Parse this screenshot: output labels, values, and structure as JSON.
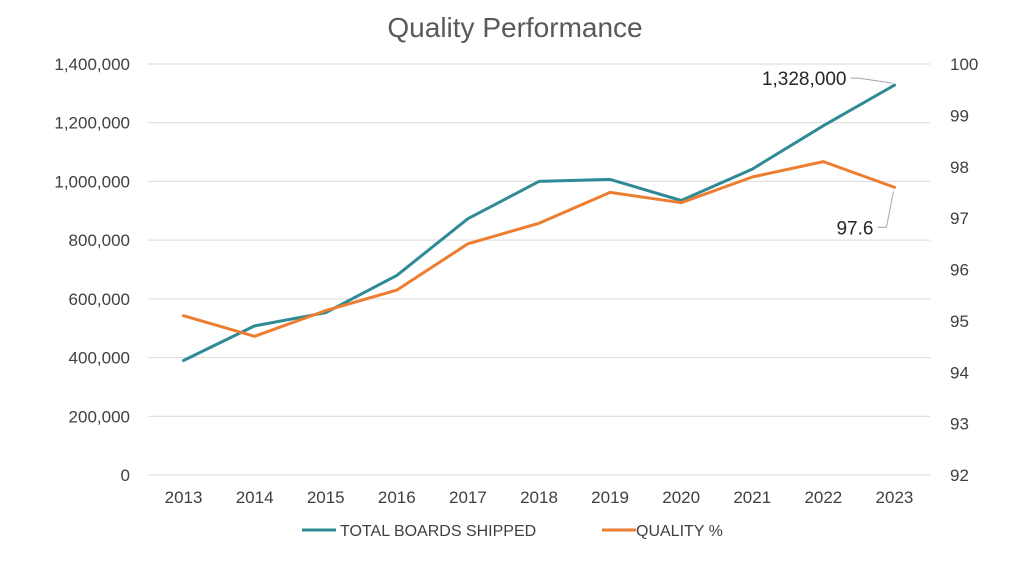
{
  "chart_data": {
    "type": "line",
    "title": "Quality Performance",
    "categories": [
      "2013",
      "2014",
      "2015",
      "2016",
      "2017",
      "2018",
      "2019",
      "2020",
      "2021",
      "2022",
      "2023"
    ],
    "grid": true,
    "legend_position": "bottom",
    "y_left": {
      "range": [
        0,
        1400000
      ],
      "ticks": [
        "0",
        "200,000",
        "400,000",
        "600,000",
        "800,000",
        "1,000,000",
        "1,200,000",
        "1,400,000"
      ]
    },
    "y_right": {
      "range": [
        92,
        100
      ],
      "ticks": [
        "92",
        "93",
        "94",
        "95",
        "96",
        "97",
        "98",
        "99",
        "100"
      ]
    },
    "series": [
      {
        "name": "TOTAL BOARDS SHIPPED",
        "axis": "left",
        "color": "#2e8b96",
        "values": [
          390000,
          508000,
          553000,
          680000,
          873000,
          1000000,
          1007000,
          935000,
          1042000,
          1190000,
          1328000
        ]
      },
      {
        "name": "QUALITY %",
        "axis": "right",
        "color": "#ed7d31",
        "values": [
          95.1,
          94.7,
          95.2,
          95.6,
          96.5,
          96.9,
          97.5,
          97.3,
          97.8,
          98.1,
          97.6
        ]
      }
    ],
    "annotations": [
      {
        "series": 0,
        "point": 10,
        "text": "1,328,000"
      },
      {
        "series": 1,
        "point": 10,
        "text": "97.6"
      }
    ]
  }
}
